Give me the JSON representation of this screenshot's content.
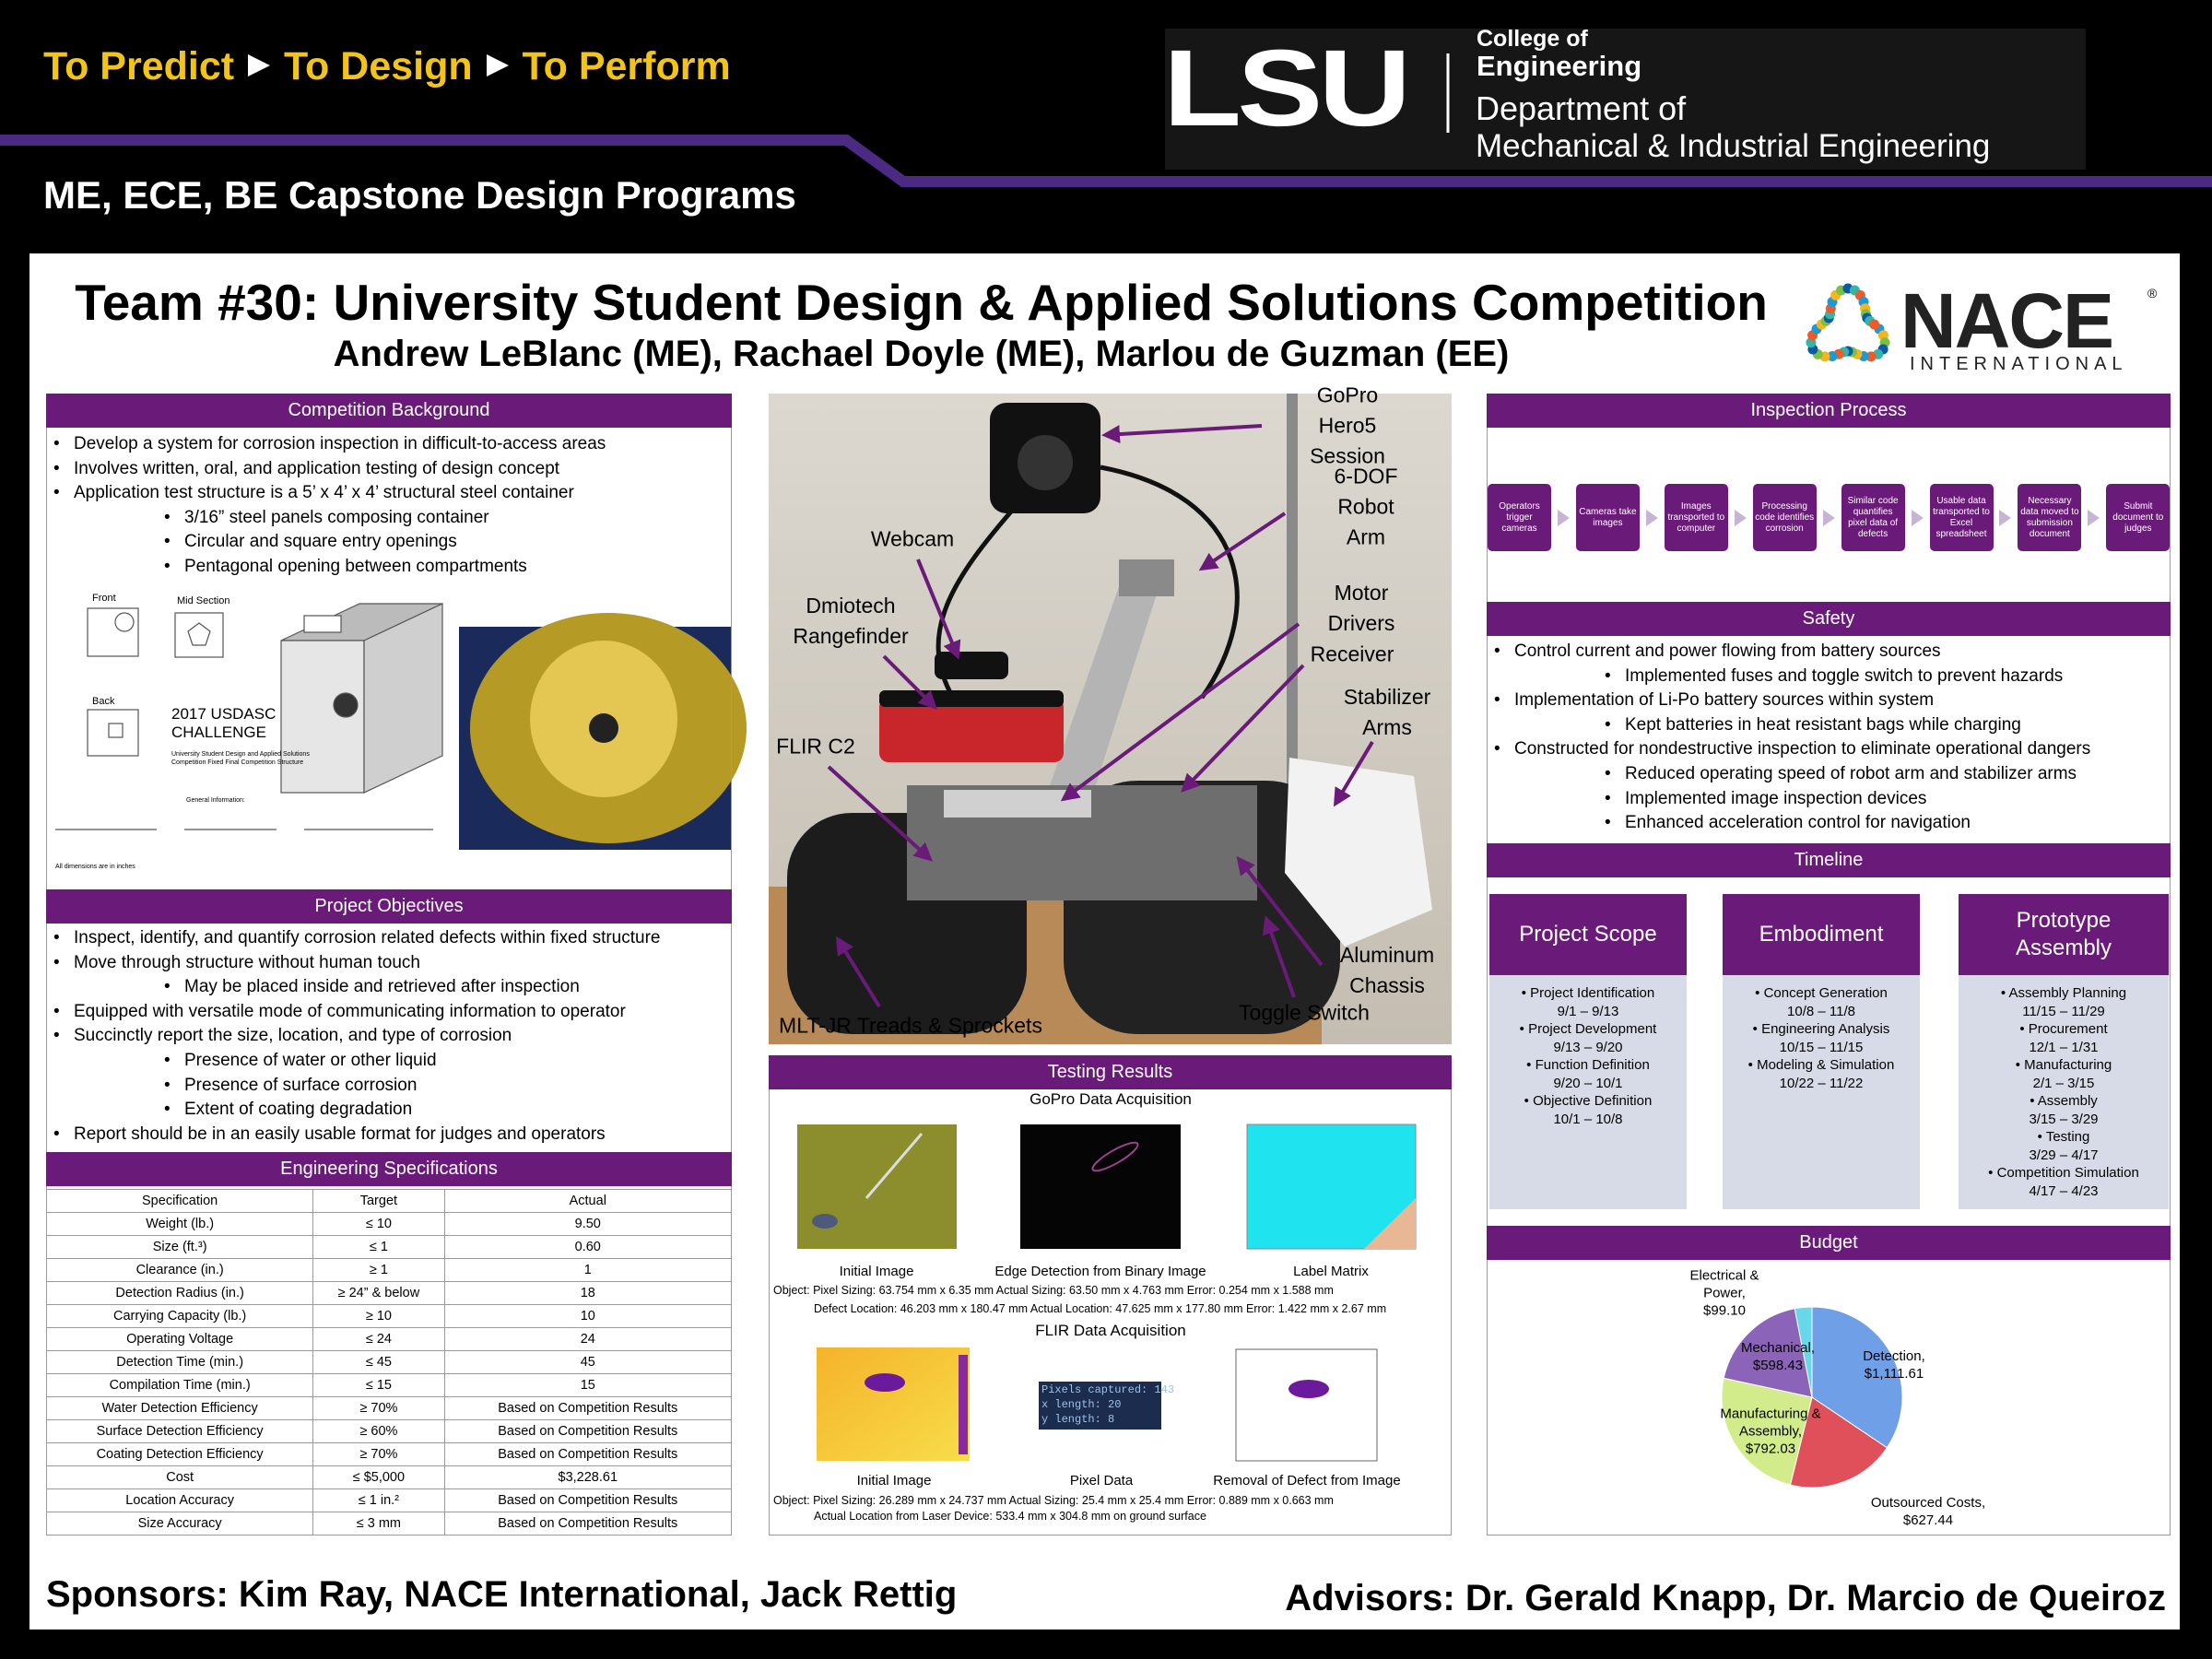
{
  "header": {
    "tagline": [
      "To Predict",
      "To Design",
      "To Perform"
    ],
    "program": "ME, ECE, BE Capstone Design Programs",
    "logo": {
      "mark": "LSU",
      "college": "College of",
      "engineering": "Engineering",
      "department": "Department of",
      "department2": "Mechanical & Industrial Engineering"
    }
  },
  "title": "Team #30: University Student Design & Applied Solutions Competition",
  "authors": "Andrew LeBlanc (ME), Rachael Doyle (ME), Marlou de Guzman (EE)",
  "nace": {
    "name": "NACE",
    "registered": "®",
    "sub": "INTERNATIONAL"
  },
  "background": {
    "heading": "Competition Background",
    "items": [
      {
        "text": "Develop a system for corrosion inspection in difficult-to-access areas"
      },
      {
        "text": "Involves written, oral, and application testing of design concept"
      },
      {
        "text": "Application test structure is a 5’ x 4’ x 4’ structural steel container",
        "sub": [
          "3/16” steel panels composing container",
          "Circular and square entry openings",
          "Pentagonal opening between compartments"
        ]
      }
    ]
  },
  "cad": {
    "front": "Front",
    "mid": "Mid Section",
    "back": "Back",
    "challenge": [
      "2017 USDASC",
      "CHALLENGE"
    ],
    "caption": [
      "University Student Design and Applied Solutions",
      "Competition Fixed Final Competition Structure"
    ],
    "general": "General Information:",
    "note": "All dimensions are in inches"
  },
  "objectives": {
    "heading": "Project Objectives",
    "items": [
      {
        "text": "Inspect, identify, and quantify corrosion related defects within fixed structure"
      },
      {
        "text": "Move through structure without human touch",
        "sub": [
          "May be placed inside and retrieved after inspection"
        ]
      },
      {
        "text": "Equipped with versatile mode of communicating information to operator"
      },
      {
        "text": "Succinctly report the size, location, and type of corrosion",
        "sub": [
          "Presence of water or other liquid",
          "Presence of surface corrosion",
          "Extent of coating degradation"
        ]
      },
      {
        "text": "Report should be in an easily usable format for judges and operators"
      }
    ]
  },
  "specs": {
    "heading": "Engineering Specifications",
    "columns": [
      "Specification",
      "Target",
      "Actual"
    ],
    "rows": [
      [
        "Weight (lb.)",
        "≤ 10",
        "9.50"
      ],
      [
        "Size (ft.³)",
        "≤ 1",
        "0.60"
      ],
      [
        "Clearance (in.)",
        "≥ 1",
        "1"
      ],
      [
        "Detection Radius (in.)",
        "≥ 24” & below",
        "18"
      ],
      [
        "Carrying Capacity (lb.)",
        "≥ 10",
        "10"
      ],
      [
        "Operating Voltage",
        "≤ 24",
        "24"
      ],
      [
        "Detection Time (min.)",
        "≤ 45",
        "45"
      ],
      [
        "Compilation Time (min.)",
        "≤ 15",
        "15"
      ],
      [
        "Water Detection Efficiency",
        "≥ 70%",
        "Based on Competition Results"
      ],
      [
        "Surface Detection Efficiency",
        "≥ 60%",
        "Based on Competition Results"
      ],
      [
        "Coating Detection Efficiency",
        "≥ 70%",
        "Based on Competition Results"
      ],
      [
        "Cost",
        "≤ $5,000",
        "$3,228.61"
      ],
      [
        "Location Accuracy",
        "≤ 1 in.²",
        "Based on Competition Results"
      ],
      [
        "Size Accuracy",
        "≤ 3 mm",
        "Based on Competition Results"
      ]
    ]
  },
  "photo": {
    "labels": [
      "GoPro Hero5\nSession",
      "6-DOF Robot\nArm",
      "Webcam",
      "Dmiotech\nRangefinder",
      "Motor Drivers",
      "Receiver",
      "Stabilizer\nArms",
      "FLIR C2",
      "Aluminum\nChassis",
      "MLT-JR Treads & Sprockets",
      "Toggle Switch"
    ]
  },
  "testing": {
    "heading": "Testing Results",
    "gopro": {
      "heading": "GoPro Data Acquisition",
      "captions": [
        "Initial Image",
        "Edge Detection from Binary Image",
        "Label Matrix"
      ],
      "lines": [
        "Object: Pixel Sizing: 63.754 mm x 6.35 mm  Actual Sizing: 63.50 mm x 4.763 mm  Error: 0.254 mm x 1.588 mm",
        "Defect Location: 46.203 mm x 180.47 mm  Actual Location: 47.625 mm x 177.80 mm  Error: 1.422 mm x 2.67 mm"
      ]
    },
    "flir": {
      "heading": "FLIR Data Acquisition",
      "captions": [
        "Initial Image",
        "Pixel Data",
        "Removal of Defect from Image"
      ],
      "pixel": [
        "Pixels captured: 143",
        "x length: 20",
        "y length: 8"
      ],
      "lines": [
        "Object: Pixel Sizing: 26.289 mm x 24.737 mm Actual Sizing: 25.4 mm x 25.4 mm Error: 0.889 mm x 0.663 mm",
        "Actual Location from Laser Device: 533.4 mm x 304.8 mm on ground surface"
      ]
    }
  },
  "inspection": {
    "heading": "Inspection Process",
    "steps": [
      "Operators trigger cameras",
      "Cameras take images",
      "Images transported to computer",
      "Processing code identifies corrosion",
      "Similar code quantifies pixel data of defects",
      "Usable data transported to Excel spreadsheet",
      "Necessary data moved to submission document",
      "Submit document to judges"
    ]
  },
  "safety": {
    "heading": "Safety",
    "items": [
      {
        "text": "Control current and power flowing from battery sources",
        "sub": [
          "Implemented fuses and toggle switch to prevent hazards"
        ]
      },
      {
        "text": "Implementation of Li-Po battery sources within system",
        "sub": [
          "Kept batteries in heat resistant bags while charging"
        ]
      },
      {
        "text": "Constructed for nondestructive inspection to eliminate operational dangers",
        "sub": [
          "Reduced operating speed of robot arm and stabilizer arms",
          "Implemented image inspection devices",
          "Enhanced acceleration control for navigation"
        ]
      }
    ]
  },
  "timeline": {
    "heading": "Timeline",
    "phases": [
      {
        "title": "Project Scope",
        "items": [
          {
            "name": "Project Identification",
            "dates": "9/1 – 9/13"
          },
          {
            "name": "Project Development",
            "dates": "9/13 – 9/20"
          },
          {
            "name": "Function Definition",
            "dates": "9/20 – 10/1"
          },
          {
            "name": "Objective Definition",
            "dates": "10/1 – 10/8"
          }
        ]
      },
      {
        "title": "Embodiment",
        "items": [
          {
            "name": "Concept Generation",
            "dates": "10/8 – 11/8"
          },
          {
            "name": "Engineering Analysis",
            "dates": "10/15 – 11/15"
          },
          {
            "name": "Modeling & Simulation",
            "dates": "10/22 – 11/22"
          }
        ]
      },
      {
        "title": "Prototype Assembly",
        "items": [
          {
            "name": "Assembly Planning",
            "dates": "11/15 – 11/29"
          },
          {
            "name": "Procurement",
            "dates": "12/1 – 1/31"
          },
          {
            "name": "Manufacturing",
            "dates": "2/1 – 3/15"
          },
          {
            "name": "Assembly",
            "dates": "3/15 – 3/29"
          },
          {
            "name": "Testing",
            "dates": "3/29 – 4/17"
          },
          {
            "name": "Competition Simulation",
            "dates": "4/17 – 4/23"
          }
        ]
      }
    ]
  },
  "chart_data": {
    "type": "pie",
    "title": "Budget",
    "categories": [
      "Detection,",
      "Outsourced Costs,",
      "Manufacturing & Assembly,",
      "Mechanical,",
      "Electrical & Power,"
    ],
    "values": [
      1111.61,
      627.44,
      792.03,
      598.43,
      99.1
    ],
    "value_labels": [
      "$1,111.61",
      "$627.44",
      "$792.03",
      "$598.43",
      "$99.10"
    ],
    "colors": [
      "#6f9fe6",
      "#e0505a",
      "#d2ec8c",
      "#8b63b8",
      "#66d8ea"
    ]
  },
  "footer": {
    "sponsors": "Sponsors: Kim Ray, NACE International, Jack Rettig",
    "advisors": "Advisors: Dr. Gerald Knapp, Dr. Marcio de Queiroz"
  }
}
